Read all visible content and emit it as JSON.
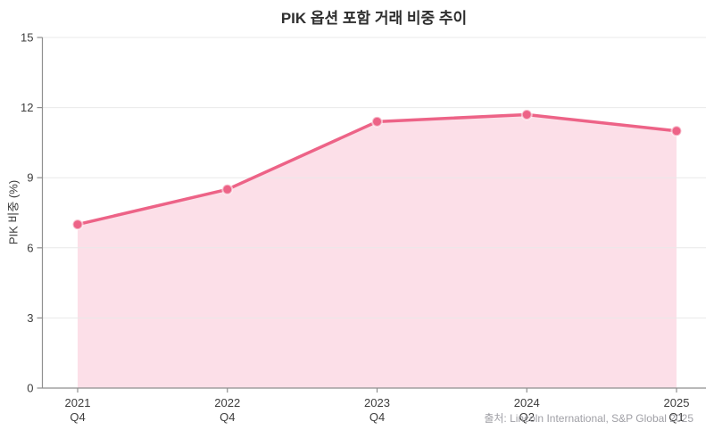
{
  "title": "PIK 옵션 포함 거래 비중 추이",
  "source": "출처: Lincoln International, S&P Global 2025",
  "chart_data": {
    "type": "line",
    "title": "PIK 옵션 포함 거래 비중 추이",
    "categories": [
      "2021 Q4",
      "2022 Q4",
      "2023 Q4",
      "2024 Q2",
      "2025 Q1"
    ],
    "tick_lines": [
      [
        "2021",
        "Q4"
      ],
      [
        "2022",
        "Q4"
      ],
      [
        "2023",
        "Q4"
      ],
      [
        "2024",
        "Q2"
      ],
      [
        "2025",
        "Q1"
      ]
    ],
    "values": [
      7.0,
      8.5,
      11.4,
      11.7,
      11.0
    ],
    "xlabel": "",
    "ylabel": "PIK 비중 (%)",
    "ylim": [
      0,
      15
    ],
    "yticks": [
      0,
      3,
      6,
      9,
      12,
      15
    ],
    "grid": true,
    "area_fill": true,
    "markers": true,
    "legend": "none",
    "colors": {
      "line": "#ed6387",
      "fill": "#fcdfe8",
      "grid": "#e9e9e9",
      "axis": "#8f8f8f",
      "tick_text": "#3d3d3d",
      "title_text": "#2f2f2f",
      "source_text": "#a0a0a6"
    }
  }
}
